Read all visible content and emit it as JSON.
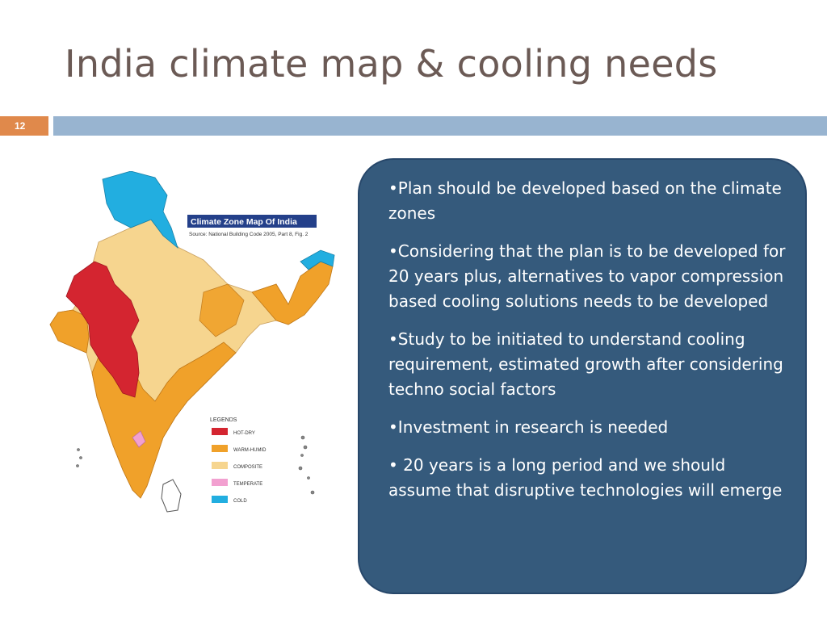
{
  "slide": {
    "title": "India climate map & cooling needs",
    "number": "12"
  },
  "map": {
    "caption_title": "Climate Zone Map Of India",
    "caption_source": "Source: National Building Code 2005, Part 8, Fig. 2",
    "legend_heading": "LEGENDS",
    "legend": [
      {
        "label": "HOT-DRY",
        "color": "#d42530"
      },
      {
        "label": "WARM-HUMID",
        "color": "#f0a12a"
      },
      {
        "label": "COMPOSITE",
        "color": "#f6d58f"
      },
      {
        "label": "TEMPERATE",
        "color": "#f2a0d0"
      },
      {
        "label": "COLD",
        "color": "#22aee0"
      }
    ]
  },
  "panel": {
    "bullets": [
      "•Plan should be developed based on the climate zones",
      "•Considering that the plan is to be developed for 20 years plus, alternatives to vapor compression based cooling solutions needs to be developed",
      "•Study to be initiated to understand cooling requirement, estimated growth after considering techno social factors",
      "•Investment in research is needed",
      "• 20 years is a long period and we should assume that disruptive technologies will emerge"
    ]
  },
  "colors": {
    "title": "#6b5a55",
    "accent": "#e0894b",
    "rule": "#98b4d0",
    "panel": "#355a7c"
  }
}
